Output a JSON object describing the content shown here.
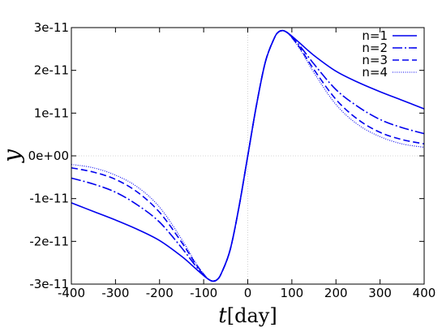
{
  "chart_data": {
    "type": "line",
    "title": "",
    "xlabel_var": "t",
    "xlabel_unit": "[day]",
    "ylabel": "y",
    "xlim": [
      -400,
      400
    ],
    "ylim": [
      -3e-11,
      3e-11
    ],
    "x_ticks": [
      -400,
      -300,
      -200,
      -100,
      0,
      100,
      200,
      300,
      400
    ],
    "x_tick_labels": [
      "-400",
      "-300",
      "-200",
      "-100",
      "0",
      "100",
      "200",
      "300",
      "400"
    ],
    "y_ticks": [
      -3e-11,
      -2e-11,
      -1e-11,
      0,
      1e-11,
      2e-11,
      3e-11
    ],
    "y_tick_labels": [
      "-3e-11",
      "-2e-11",
      "-1e-11",
      "0e+00",
      "1e-11",
      "2e-11",
      "3e-11"
    ],
    "zero_lines": true,
    "legend_position": "top-right",
    "line_color": "#0000ee",
    "series": [
      {
        "name": "n=1",
        "style": "solid",
        "x": [
          -400,
          -350,
          -300,
          -250,
          -200,
          -150,
          -120,
          -100,
          -90,
          -80,
          -70,
          -60,
          -40,
          -20,
          0,
          20,
          40,
          60,
          70,
          80,
          90,
          100,
          120,
          150,
          200,
          250,
          300,
          350,
          400
        ],
        "y": [
          -1.1e-11,
          -1.3e-11,
          -1.5e-11,
          -1.72e-11,
          -1.98e-11,
          -2.35e-11,
          -2.62e-11,
          -2.8e-11,
          -2.88e-11,
          -2.93e-11,
          -2.9e-11,
          -2.75e-11,
          -2.2e-11,
          -1.2e-11,
          0,
          1.2e-11,
          2.2e-11,
          2.75e-11,
          2.9e-11,
          2.93e-11,
          2.88e-11,
          2.8e-11,
          2.62e-11,
          2.35e-11,
          1.98e-11,
          1.72e-11,
          1.5e-11,
          1.3e-11,
          1.1e-11
        ]
      },
      {
        "name": "n=2",
        "style": "dashdot",
        "x": [
          -400,
          -350,
          -300,
          -250,
          -200,
          -150,
          -120,
          -100,
          -90,
          -80,
          -70,
          -60,
          -40,
          -20,
          0,
          20,
          40,
          60,
          70,
          80,
          90,
          100,
          120,
          150,
          200,
          250,
          300,
          350,
          400
        ],
        "y": [
          -5.2e-12,
          -6.6e-12,
          -8.5e-12,
          -1.15e-11,
          -1.55e-11,
          -2.15e-11,
          -2.55e-11,
          -2.78e-11,
          -2.88e-11,
          -2.93e-11,
          -2.9e-11,
          -2.75e-11,
          -2.2e-11,
          -1.2e-11,
          0,
          1.2e-11,
          2.2e-11,
          2.75e-11,
          2.9e-11,
          2.93e-11,
          2.88e-11,
          2.78e-11,
          2.55e-11,
          2.15e-11,
          1.55e-11,
          1.15e-11,
          8.5e-12,
          6.6e-12,
          5.2e-12
        ]
      },
      {
        "name": "n=3",
        "style": "dashed",
        "x": [
          -400,
          -350,
          -300,
          -250,
          -200,
          -150,
          -120,
          -100,
          -90,
          -80,
          -70,
          -60,
          -40,
          -20,
          0,
          20,
          40,
          60,
          70,
          80,
          90,
          100,
          120,
          150,
          200,
          250,
          300,
          350,
          400
        ],
        "y": [
          -2.8e-12,
          -3.8e-12,
          -5.5e-12,
          -8.5e-12,
          -1.32e-11,
          -2.02e-11,
          -2.5e-11,
          -2.77e-11,
          -2.88e-11,
          -2.93e-11,
          -2.9e-11,
          -2.75e-11,
          -2.2e-11,
          -1.2e-11,
          0,
          1.2e-11,
          2.2e-11,
          2.75e-11,
          2.9e-11,
          2.93e-11,
          2.88e-11,
          2.77e-11,
          2.5e-11,
          2.02e-11,
          1.32e-11,
          8.5e-12,
          5.5e-12,
          3.8e-12,
          2.8e-12
        ]
      },
      {
        "name": "n=4",
        "style": "dotted",
        "x": [
          -400,
          -350,
          -300,
          -250,
          -200,
          -150,
          -120,
          -100,
          -90,
          -80,
          -70,
          -60,
          -40,
          -20,
          0,
          20,
          40,
          60,
          70,
          80,
          90,
          100,
          120,
          150,
          200,
          250,
          300,
          350,
          400
        ],
        "y": [
          -2e-12,
          -2.8e-12,
          -4.5e-12,
          -7.3e-12,
          -1.2e-11,
          -1.95e-11,
          -2.47e-11,
          -2.76e-11,
          -2.88e-11,
          -2.93e-11,
          -2.9e-11,
          -2.75e-11,
          -2.2e-11,
          -1.2e-11,
          0,
          1.2e-11,
          2.2e-11,
          2.75e-11,
          2.9e-11,
          2.93e-11,
          2.88e-11,
          2.76e-11,
          2.47e-11,
          1.95e-11,
          1.2e-11,
          7.3e-12,
          4.5e-12,
          2.8e-12,
          2e-12
        ]
      }
    ]
  }
}
